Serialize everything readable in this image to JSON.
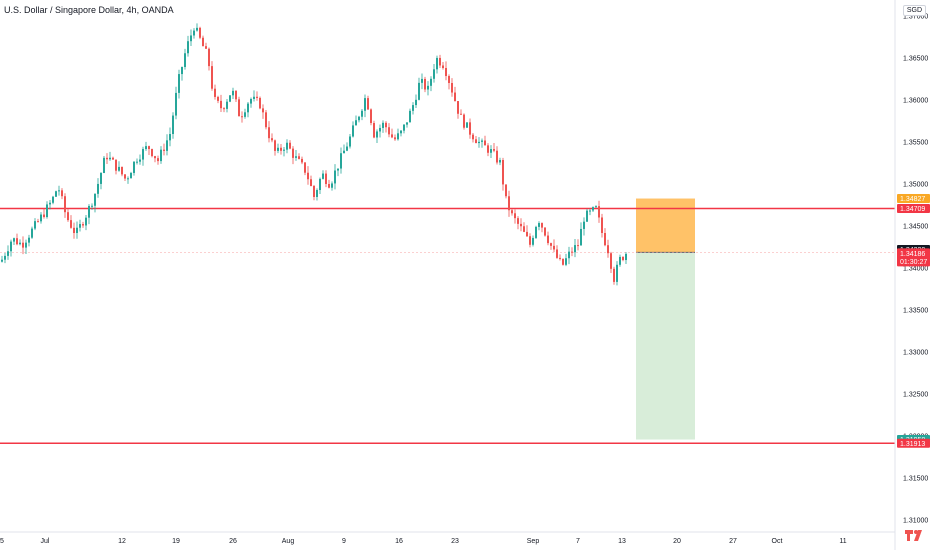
{
  "header": {
    "title": "U.S. Dollar / Singapore Dollar, 4h, OANDA",
    "currency": "SGD"
  },
  "colors": {
    "up": "#26a69a",
    "down": "#ef5350",
    "hline": "#f23645",
    "stop_zone": "#ffb74d",
    "target_zone": "#c8e6c9",
    "axis": "#e0e3eb",
    "text": "#131722"
  },
  "chart_data": {
    "type": "candlestick",
    "title": "U.S. Dollar / Singapore Dollar, 4h, OANDA",
    "symbol": "USDSGD",
    "interval": "4h",
    "source": "OANDA",
    "currency": "SGD",
    "ylim": [
      1.3075,
      1.3705
    ],
    "y_ticks": [
      "1.37000",
      "1.36500",
      "1.36000",
      "1.35500",
      "1.35000",
      "1.34500",
      "1.34000",
      "1.33500",
      "1.33000",
      "1.32500",
      "1.32000",
      "1.31500",
      "1.31000"
    ],
    "x_ticks": [
      "5",
      "Jul",
      "12",
      "19",
      "26",
      "Aug",
      "9",
      "16",
      "23",
      "Sep",
      "7",
      "13",
      "20",
      "27",
      "Oct",
      "11"
    ],
    "close_path": [
      [
        0,
        1.3405
      ],
      [
        12,
        1.3435
      ],
      [
        22,
        1.3428
      ],
      [
        38,
        1.3455
      ],
      [
        52,
        1.348
      ],
      [
        58,
        1.3498
      ],
      [
        66,
        1.3462
      ],
      [
        76,
        1.344
      ],
      [
        88,
        1.3468
      ],
      [
        96,
        1.3492
      ],
      [
        106,
        1.3535
      ],
      [
        118,
        1.3518
      ],
      [
        126,
        1.3505
      ],
      [
        136,
        1.353
      ],
      [
        148,
        1.3545
      ],
      [
        158,
        1.3528
      ],
      [
        170,
        1.356
      ],
      [
        178,
        1.362
      ],
      [
        186,
        1.366
      ],
      [
        194,
        1.3688
      ],
      [
        200,
        1.3672
      ],
      [
        208,
        1.365
      ],
      [
        214,
        1.36
      ],
      [
        222,
        1.359
      ],
      [
        232,
        1.3612
      ],
      [
        240,
        1.358
      ],
      [
        250,
        1.3602
      ],
      [
        260,
        1.3595
      ],
      [
        268,
        1.3562
      ],
      [
        276,
        1.3535
      ],
      [
        286,
        1.3548
      ],
      [
        296,
        1.353
      ],
      [
        306,
        1.3515
      ],
      [
        314,
        1.3485
      ],
      [
        322,
        1.3512
      ],
      [
        330,
        1.35
      ],
      [
        340,
        1.3528
      ],
      [
        350,
        1.3555
      ],
      [
        358,
        1.358
      ],
      [
        366,
        1.3605
      ],
      [
        374,
        1.356
      ],
      [
        384,
        1.3572
      ],
      [
        394,
        1.3552
      ],
      [
        402,
        1.3562
      ],
      [
        412,
        1.359
      ],
      [
        420,
        1.3622
      ],
      [
        428,
        1.3612
      ],
      [
        436,
        1.365
      ],
      [
        444,
        1.3642
      ],
      [
        452,
        1.3612
      ],
      [
        460,
        1.358
      ],
      [
        470,
        1.3562
      ],
      [
        480,
        1.3548
      ],
      [
        490,
        1.354
      ],
      [
        500,
        1.3525
      ],
      [
        506,
        1.348
      ],
      [
        512,
        1.3462
      ],
      [
        522,
        1.3445
      ],
      [
        530,
        1.3428
      ],
      [
        538,
        1.346
      ],
      [
        546,
        1.344
      ],
      [
        554,
        1.3418
      ],
      [
        562,
        1.3402
      ],
      [
        570,
        1.3418
      ],
      [
        578,
        1.3428
      ],
      [
        584,
        1.346
      ],
      [
        590,
        1.3465
      ],
      [
        596,
        1.347
      ],
      [
        602,
        1.3442
      ],
      [
        608,
        1.3422
      ],
      [
        614,
        1.3388
      ],
      [
        620,
        1.341
      ],
      [
        626,
        1.3418
      ]
    ],
    "lines": [
      {
        "name": "resistance",
        "value": 1.34709,
        "label": "1.34709"
      },
      {
        "name": "support",
        "value": 1.31913,
        "label": "1.31913"
      }
    ],
    "position": {
      "type": "short",
      "entry": 1.34186,
      "stop": 1.34827,
      "target": 1.31958,
      "entry_label": "1.34186",
      "stop_label": "1.34827",
      "target_label": "1.31958"
    },
    "last_price": {
      "value": 1.3422,
      "label": "1.34220"
    },
    "current": {
      "value": 1.34186,
      "label": "1.34186",
      "countdown": "01:30:27"
    }
  }
}
